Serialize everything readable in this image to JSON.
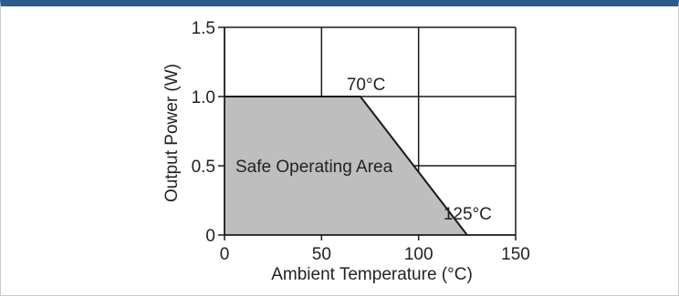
{
  "colors": {
    "header_bar": "#2c5a8a",
    "safe_area_fill": "#bebebe",
    "grid": "#1a1a1a",
    "line": "#1a1a1a"
  },
  "chart_data": {
    "type": "area",
    "title": "",
    "xlabel": "Ambient Temperature (°C)",
    "ylabel": "Output Power (W)",
    "xlim": [
      0,
      150
    ],
    "ylim": [
      0,
      1.5
    ],
    "x_ticks": [
      0,
      50,
      100,
      150
    ],
    "x_tick_labels": [
      "0",
      "50",
      "100",
      "150"
    ],
    "y_ticks": [
      0,
      0.5,
      1.0,
      1.5
    ],
    "y_tick_labels": [
      "0",
      "0.5",
      "1.0",
      "1.5"
    ],
    "grid": true,
    "series": [
      {
        "x": [
          0,
          70,
          125
        ],
        "y": [
          1.0,
          1.0,
          0
        ]
      }
    ],
    "annotations": [
      {
        "text": "70°C",
        "x": 70,
        "y": 1.0
      },
      {
        "text": "125°C",
        "x": 125,
        "y": 0
      },
      {
        "text": "Safe Operating Area",
        "x": 40,
        "y": 0.5
      }
    ]
  }
}
